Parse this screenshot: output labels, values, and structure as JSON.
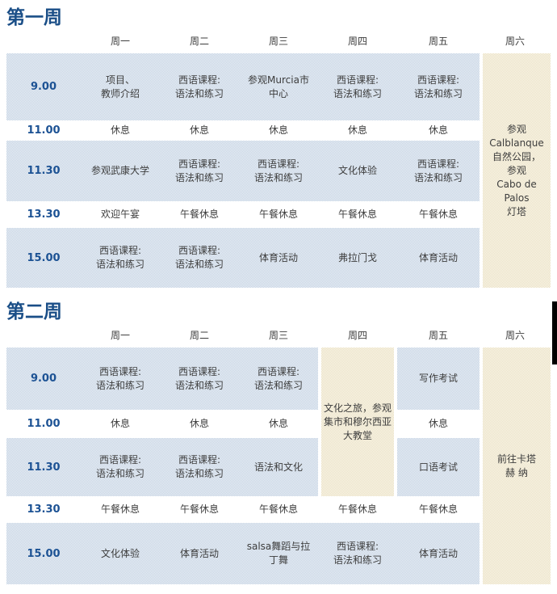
{
  "colors": {
    "title_blue": "#1a4e87",
    "time_blue": "#1c5294",
    "text_dark": "#3d3d3d",
    "row_shade_a": "#c3d2e3",
    "row_shade_b": "#edf1f6",
    "saturday_shade_a": "#e9dfc1",
    "saturday_shade_b": "#fbf8ee",
    "scrollbar_black": "#000000"
  },
  "weeks": [
    {
      "title": "第一周",
      "day_headers": [
        "周一",
        "周二",
        "周三",
        "周四",
        "周五",
        "周六"
      ],
      "rows": [
        {
          "time": "9.00",
          "shaded": true,
          "cells": [
            "项目、\n教师介绍",
            "西语课程:\n语法和练习",
            "参观Murcia市\n中心",
            "西语课程:\n语法和练习",
            "西语课程:\n语法和练习"
          ]
        },
        {
          "time": "11.00",
          "shaded": false,
          "cells": [
            "休息",
            "休息",
            "休息",
            "休息",
            "休息"
          ]
        },
        {
          "time": "11.30",
          "shaded": true,
          "cells": [
            "参观武康大学",
            "西语课程:\n语法和练习",
            "西语课程:\n语法和练习",
            "文化体验",
            "西语课程:\n语法和练习"
          ]
        },
        {
          "time": "13.30",
          "shaded": false,
          "cells": [
            "欢迎午宴",
            "午餐休息",
            "午餐休息",
            "午餐休息",
            "午餐休息"
          ]
        },
        {
          "time": "15.00",
          "shaded": true,
          "cells": [
            "西语课程:\n语法和练习",
            "西语课程:\n语法和练习",
            "体育活动",
            "弗拉门戈",
            "体育活动"
          ]
        }
      ],
      "merged": [
        {
          "day": 5,
          "row": 0,
          "span": 5,
          "text": "参观\nCalblanque\n自然公园，\n参观\nCabo de Palos\n灯塔"
        }
      ]
    },
    {
      "title": "第二周",
      "day_headers": [
        "周一",
        "周二",
        "周三",
        "周四",
        "周五",
        "周六"
      ],
      "rows": [
        {
          "time": "9.00",
          "shaded": true,
          "cells": [
            "西语课程:\n语法和练习",
            "西语课程:\n语法和练习",
            "西语课程:\n语法和练习",
            null,
            "写作考试"
          ]
        },
        {
          "time": "11.00",
          "shaded": false,
          "cells": [
            "休息",
            "休息",
            "休息",
            null,
            "休息"
          ]
        },
        {
          "time": "11.30",
          "shaded": true,
          "cells": [
            "西语课程:\n语法和练习",
            "西语课程:\n语法和练习",
            "语法和文化",
            null,
            "口语考试"
          ]
        },
        {
          "time": "13.30",
          "shaded": false,
          "cells": [
            "午餐休息",
            "午餐休息",
            "午餐休息",
            "午餐休息",
            "午餐休息"
          ]
        },
        {
          "time": "15.00",
          "shaded": true,
          "cells": [
            "文化体验",
            "体育活动",
            "salsa舞蹈与拉\n丁舞",
            "西语课程:\n语法和练习",
            "体育活动"
          ]
        }
      ],
      "merged": [
        {
          "day": 3,
          "row": 0,
          "span": 3,
          "text": "文化之旅，参观\n集市和穆尔西亚\n大教堂"
        },
        {
          "day": 5,
          "row": 0,
          "span": 5,
          "text": "前往卡塔\n赫 纳"
        }
      ]
    }
  ]
}
